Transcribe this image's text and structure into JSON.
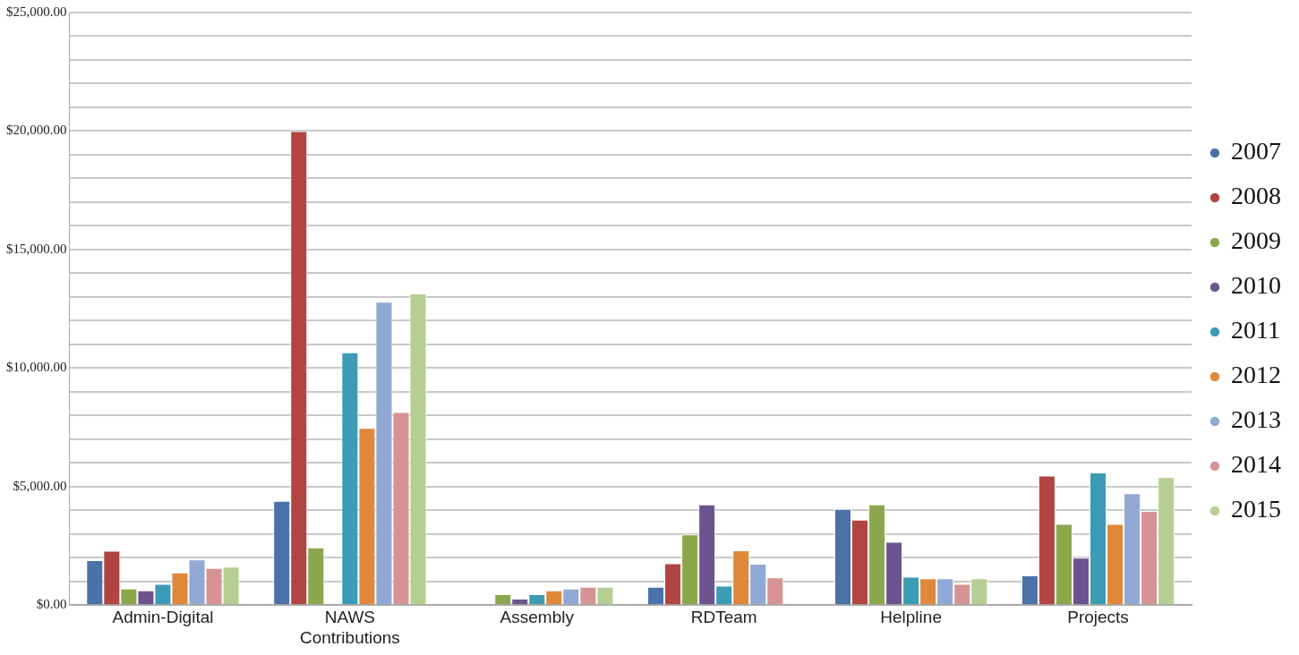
{
  "chart_data": {
    "type": "bar",
    "categories": [
      "Admin-Digital",
      "NAWS Contributions",
      "Assembly",
      "RDTeam",
      "Helpline",
      "Projects"
    ],
    "series": [
      {
        "name": "2007",
        "color": "#4a72a8",
        "values": [
          1900,
          4400,
          0,
          780,
          4060,
          1260
        ]
      },
      {
        "name": "2008",
        "color": "#b24442",
        "values": [
          2300,
          20000,
          0,
          1770,
          3610,
          5470
        ]
      },
      {
        "name": "2009",
        "color": "#8aa84b",
        "values": [
          700,
          2440,
          470,
          2990,
          4250,
          3430
        ]
      },
      {
        "name": "2010",
        "color": "#6e548e",
        "values": [
          630,
          0,
          280,
          4250,
          2680,
          2010
        ]
      },
      {
        "name": "2011",
        "color": "#3c9bb5",
        "values": [
          900,
          10670,
          470,
          830,
          1200,
          5600
        ]
      },
      {
        "name": "2012",
        "color": "#e0883a",
        "values": [
          1380,
          7480,
          630,
          2320,
          1140,
          3430
        ]
      },
      {
        "name": "2013",
        "color": "#8fa9d4",
        "values": [
          1930,
          12800,
          700,
          1750,
          1140,
          4720
        ]
      },
      {
        "name": "2014",
        "color": "#d69393",
        "values": [
          1570,
          8150,
          780,
          1180,
          900,
          3980
        ]
      },
      {
        "name": "2015",
        "color": "#b5cf92",
        "values": [
          1630,
          13150,
          780,
          0,
          1140,
          5400
        ]
      }
    ],
    "ylim": [
      0,
      25000
    ],
    "yticks": [
      {
        "value": 0,
        "label": "$0.00"
      },
      {
        "value": 1000,
        "label": null
      },
      {
        "value": 2000,
        "label": null
      },
      {
        "value": 3000,
        "label": null
      },
      {
        "value": 4000,
        "label": null
      },
      {
        "value": 5000,
        "label": "$5,000.00"
      },
      {
        "value": 6000,
        "label": null
      },
      {
        "value": 7000,
        "label": null
      },
      {
        "value": 8000,
        "label": null
      },
      {
        "value": 9000,
        "label": null
      },
      {
        "value": 10000,
        "label": "$10,000.00"
      },
      {
        "value": 11000,
        "label": null
      },
      {
        "value": 12000,
        "label": null
      },
      {
        "value": 13000,
        "label": null
      },
      {
        "value": 14000,
        "label": null
      },
      {
        "value": 15000,
        "label": "$15,000.00"
      },
      {
        "value": 16000,
        "label": null
      },
      {
        "value": 17000,
        "label": null
      },
      {
        "value": 18000,
        "label": null
      },
      {
        "value": 19000,
        "label": null
      },
      {
        "value": 20000,
        "label": "$20,000.00"
      },
      {
        "value": 21000,
        "label": null
      },
      {
        "value": 22000,
        "label": null
      },
      {
        "value": 23000,
        "label": null
      },
      {
        "value": 24000,
        "label": null
      },
      {
        "value": 25000,
        "label": "$25,000.00"
      }
    ],
    "grid": true,
    "legend": "right"
  }
}
